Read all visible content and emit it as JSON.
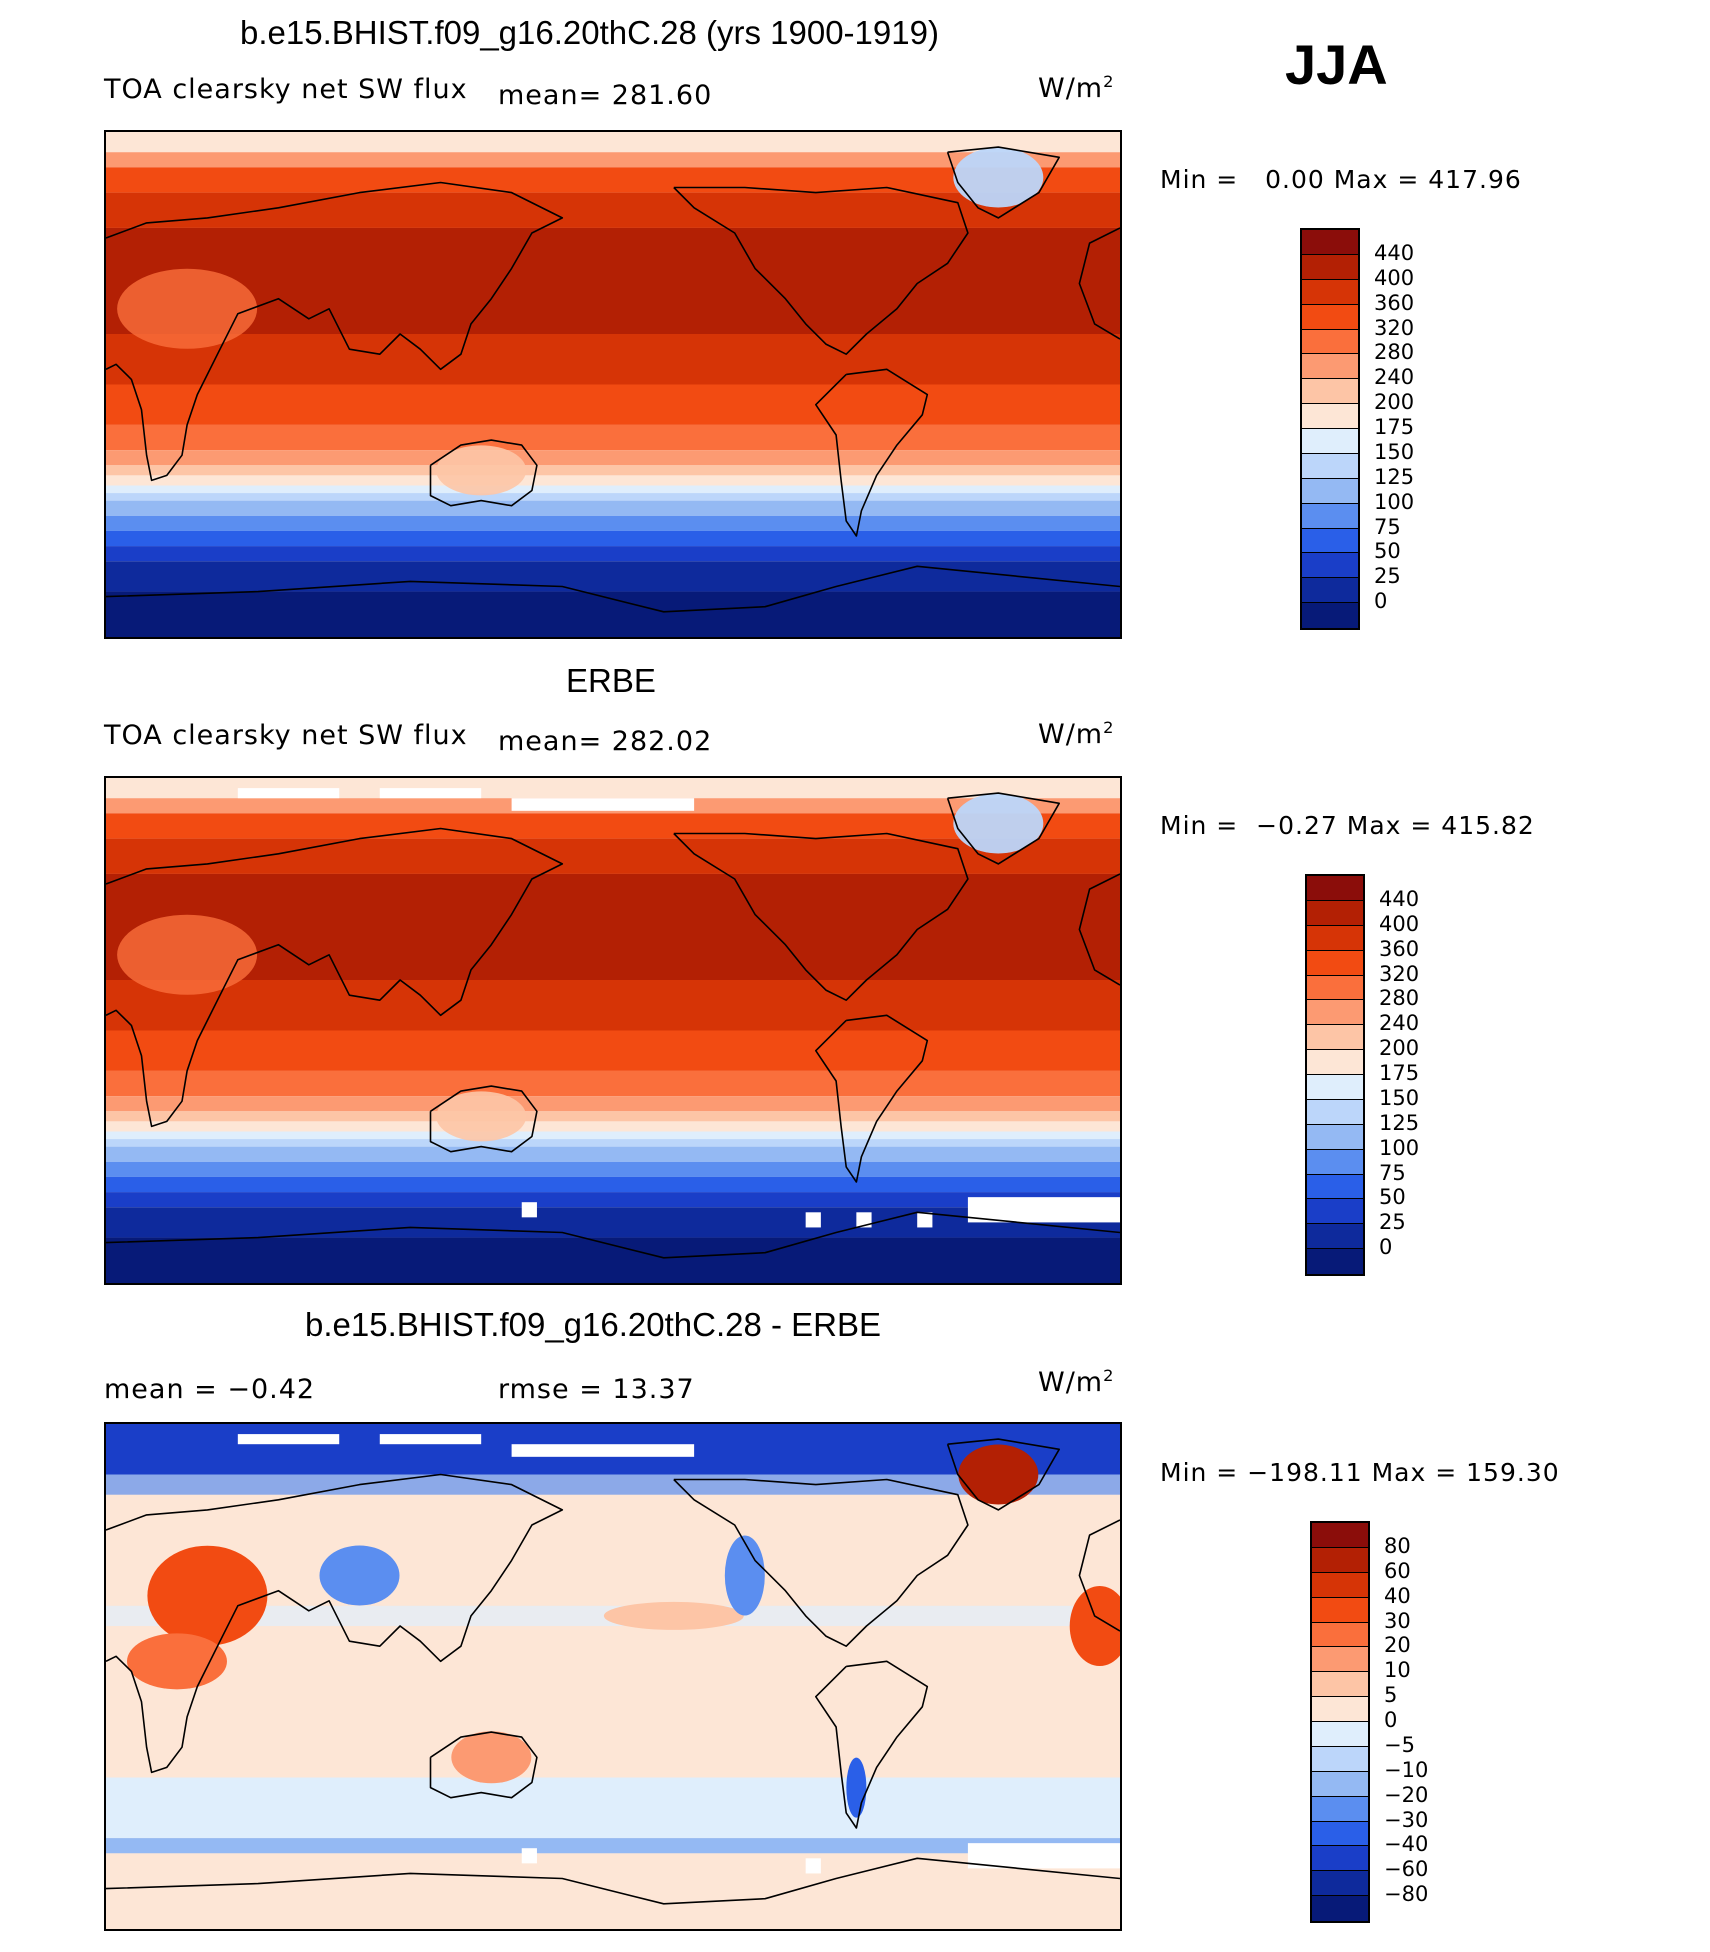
{
  "season": "JJA",
  "panels": [
    {
      "title": "b.e15.BHIST.f09_g16.20thC.28 (yrs 1900-1919)",
      "left_label": "TOA clearsky net SW flux",
      "stat1": "mean=  281.60",
      "units": "W/m",
      "units_sup": "2",
      "min_label": "Min =",
      "min_value": "0.00",
      "max_label": "Max =",
      "max_value": "417.96",
      "colorbar": {
        "ticks": [
          "440",
          "400",
          "360",
          "320",
          "280",
          "240",
          "200",
          "175",
          "150",
          "125",
          "100",
          "75",
          "50",
          "25",
          "0"
        ],
        "colors": [
          "#8b0d0a",
          "#b32004",
          "#d63406",
          "#f24b12",
          "#fa6f3c",
          "#fc9a72",
          "#fdc5a6",
          "#fde6d6",
          "#dfeefc",
          "#bcd6fa",
          "#94b9f3",
          "#5b8ef0",
          "#2a5fe8",
          "#1a3ec8",
          "#0e2a9c",
          "#071a78"
        ]
      },
      "map_style": "model"
    },
    {
      "title": "ERBE",
      "left_label": "TOA clearsky net SW flux",
      "stat1": "mean=  282.02",
      "units": "W/m",
      "units_sup": "2",
      "min_label": "Min =",
      "min_value": "−0.27",
      "max_label": "Max =",
      "max_value": "415.82",
      "colorbar": {
        "ticks": [
          "440",
          "400",
          "360",
          "320",
          "280",
          "240",
          "200",
          "175",
          "150",
          "125",
          "100",
          "75",
          "50",
          "25",
          "0"
        ],
        "colors": [
          "#8b0d0a",
          "#b32004",
          "#d63406",
          "#f24b12",
          "#fa6f3c",
          "#fc9a72",
          "#fdc5a6",
          "#fde6d6",
          "#dfeefc",
          "#bcd6fa",
          "#94b9f3",
          "#5b8ef0",
          "#2a5fe8",
          "#1a3ec8",
          "#0e2a9c",
          "#071a78"
        ]
      },
      "map_style": "obs"
    },
    {
      "title": "b.e15.BHIST.f09_g16.20thC.28 - ERBE",
      "stat_mean_label": "mean =",
      "stat_mean_value": "−0.42",
      "stat_rmse_label": "rmse =",
      "stat_rmse_value": "13.37",
      "units": "W/m",
      "units_sup": "2",
      "min_label": "Min =",
      "min_value": "−198.11",
      "max_label": "Max =",
      "max_value": "159.30",
      "colorbar": {
        "ticks": [
          "80",
          "60",
          "40",
          "30",
          "20",
          "10",
          "5",
          "0",
          "−5",
          "−10",
          "−20",
          "−30",
          "−40",
          "−60",
          "−80"
        ],
        "colors": [
          "#8b0d0a",
          "#b32004",
          "#d63406",
          "#f24b12",
          "#fa6f3c",
          "#fc9a72",
          "#fdc5a6",
          "#fde6d6",
          "#dfeefc",
          "#bcd6fa",
          "#94b9f3",
          "#5b8ef0",
          "#2a5fe8",
          "#1a3ec8",
          "#0e2a9c",
          "#071a78"
        ]
      },
      "map_style": "diff"
    }
  ]
}
